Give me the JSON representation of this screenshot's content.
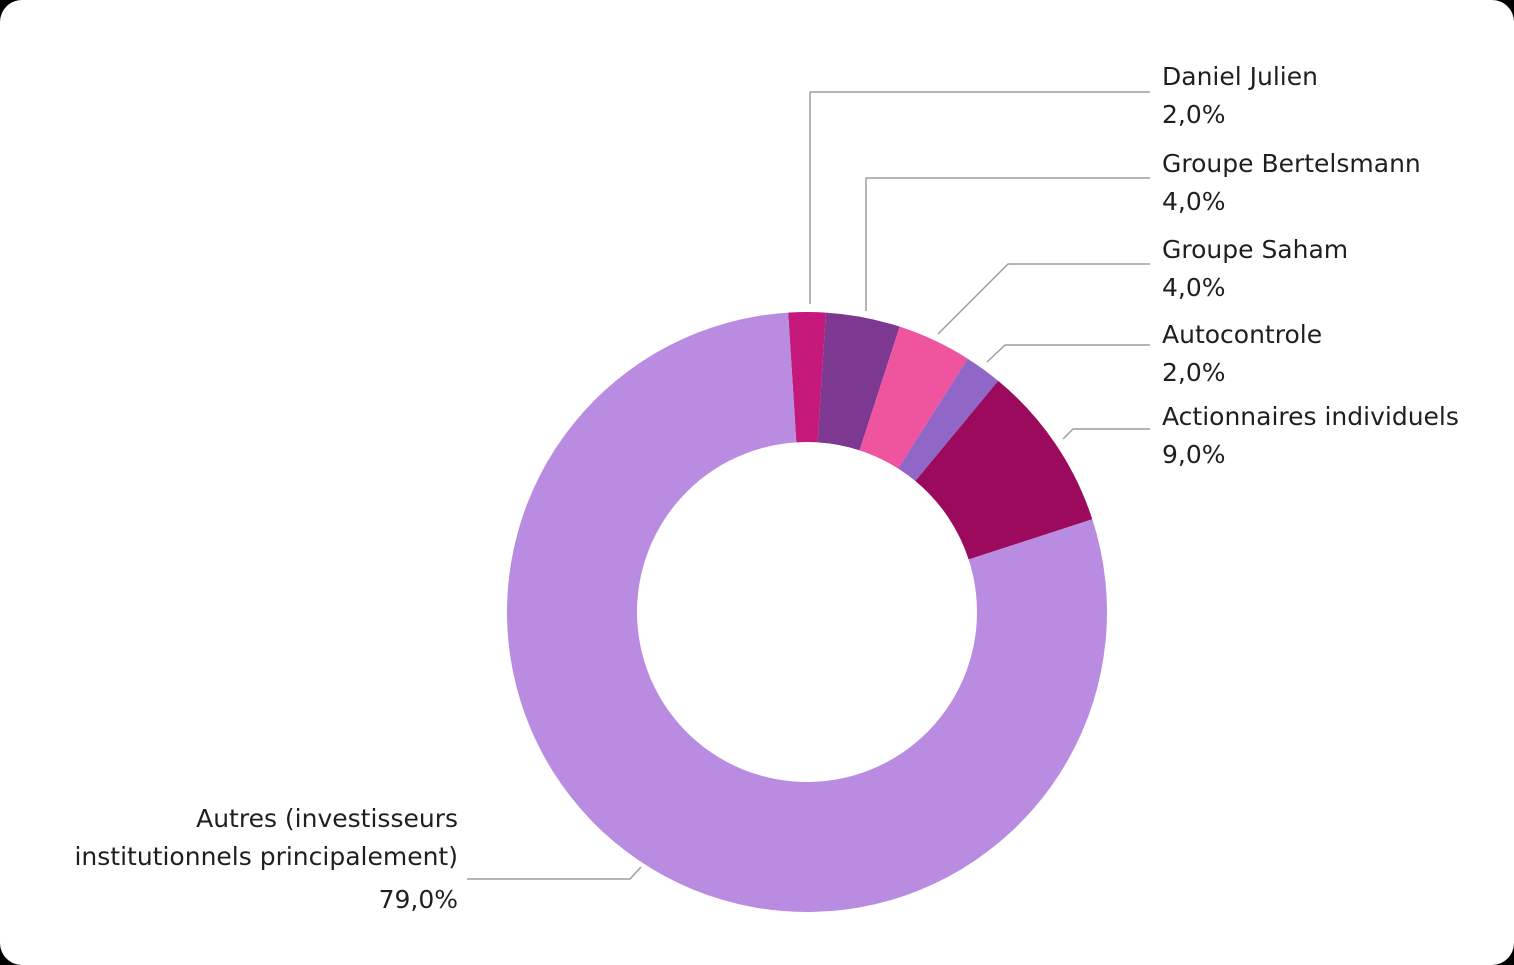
{
  "chart_data": {
    "type": "pie",
    "subtype": "donut",
    "title": "",
    "total": 100,
    "start_angle_deg": -3.6,
    "inner_radius_ratio": 0.567,
    "legend_position": "callout-labels",
    "background": "#FFFFFF",
    "page_background": "#000000",
    "text_color": "#1F1F1F",
    "leader_line_color": "#9E9E9E",
    "slices": [
      {
        "label": "Daniel Julien",
        "value": 2.0,
        "value_label": "2,0%",
        "color": "#C4187B"
      },
      {
        "label": "Groupe Bertelsmann",
        "value": 4.0,
        "value_label": "4,0%",
        "color": "#7D3891"
      },
      {
        "label": "Groupe Saham",
        "value": 4.0,
        "value_label": "4,0%",
        "color": "#EF549E"
      },
      {
        "label": "Autocontrole",
        "value": 2.0,
        "value_label": "2,0%",
        "color": "#9066C6"
      },
      {
        "label": "Actionnaires individuels",
        "value": 9.0,
        "value_label": "9,0%",
        "color": "#9B0A5C"
      },
      {
        "label": "Autres (investisseurs institutionnels principalement)",
        "value": 79.0,
        "value_label": "79,0%",
        "color": "#B98CE1"
      }
    ]
  }
}
